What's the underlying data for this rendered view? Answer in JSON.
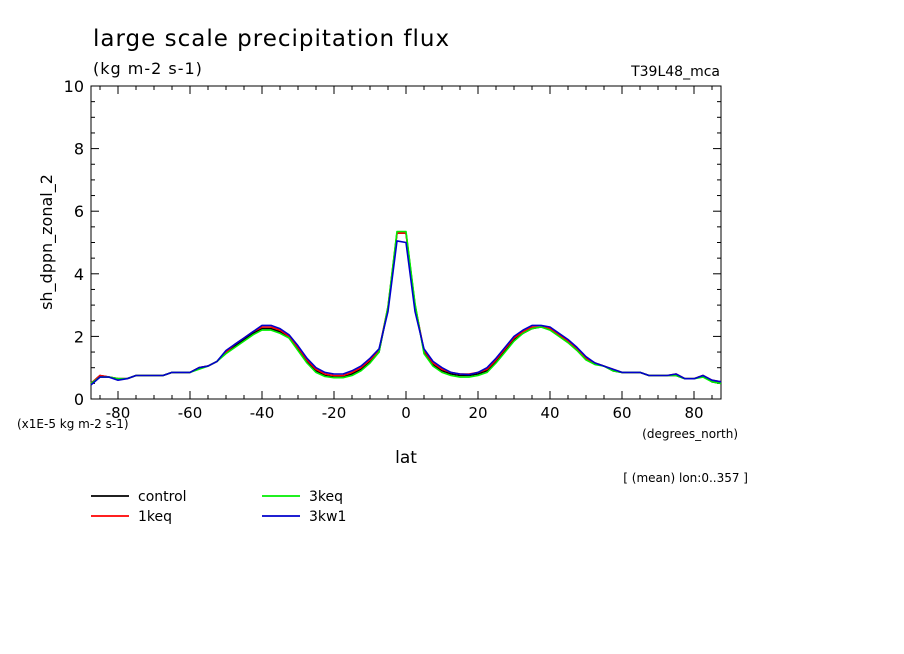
{
  "chart_data": {
    "type": "line",
    "title": "large scale precipitation flux",
    "subtitle": "(kg m-2 s-1)",
    "run_label": "T39L48_mca",
    "xlabel": "lat",
    "xunits": "(degrees_north)",
    "ylabel": "sh_dppn_zonal_2",
    "yscale_note": "(x1E-5 kg m-2 s-1)",
    "footnote": "[ (mean) lon:0..357 ]",
    "xlim": [
      -87.5,
      87.5
    ],
    "ylim": [
      0,
      10
    ],
    "xticks": [
      -80,
      -60,
      -40,
      -20,
      0,
      20,
      40,
      60,
      80
    ],
    "xtick_labels": [
      "-80",
      "-60",
      "-40",
      "-20",
      "0",
      "20",
      "40",
      "60",
      "80"
    ],
    "yticks": [
      0,
      2,
      4,
      6,
      8,
      10
    ],
    "ytick_labels": [
      "0",
      "2",
      "4",
      "6",
      "8",
      "10"
    ],
    "x": [
      -87.5,
      -85,
      -82.5,
      -80,
      -77.5,
      -75,
      -72.5,
      -70,
      -67.5,
      -65,
      -62.5,
      -60,
      -57.5,
      -55,
      -52.5,
      -50,
      -47.5,
      -45,
      -42.5,
      -40,
      -37.5,
      -35,
      -32.5,
      -30,
      -27.5,
      -25,
      -22.5,
      -20,
      -17.5,
      -15,
      -12.5,
      -10,
      -7.5,
      -5,
      -2.5,
      0,
      2.5,
      5,
      7.5,
      10,
      12.5,
      15,
      17.5,
      20,
      22.5,
      25,
      27.5,
      30,
      32.5,
      35,
      37.5,
      40,
      42.5,
      45,
      47.5,
      50,
      52.5,
      55,
      57.5,
      60,
      62.5,
      65,
      67.5,
      70,
      72.5,
      75,
      77.5,
      80,
      82.5,
      85,
      87.5
    ],
    "series": [
      {
        "name": "control",
        "color": "#000000",
        "values": [
          0.5,
          0.75,
          0.7,
          0.65,
          0.65,
          0.75,
          0.75,
          0.75,
          0.75,
          0.85,
          0.85,
          0.85,
          1.0,
          1.05,
          1.2,
          1.5,
          1.7,
          1.9,
          2.1,
          2.25,
          2.25,
          2.15,
          2.0,
          1.6,
          1.2,
          0.9,
          0.75,
          0.7,
          0.7,
          0.8,
          0.95,
          1.2,
          1.5,
          2.9,
          5.3,
          5.3,
          3.0,
          1.5,
          1.1,
          0.9,
          0.8,
          0.75,
          0.75,
          0.8,
          0.9,
          1.2,
          1.55,
          1.9,
          2.1,
          2.25,
          2.3,
          2.25,
          2.05,
          1.85,
          1.6,
          1.3,
          1.15,
          1.05,
          0.9,
          0.85,
          0.85,
          0.85,
          0.75,
          0.75,
          0.75,
          0.75,
          0.65,
          0.65,
          0.75,
          0.55,
          0.5
        ]
      },
      {
        "name": "1keq",
        "color": "#ff0000",
        "values": [
          0.5,
          0.75,
          0.7,
          0.65,
          0.65,
          0.75,
          0.75,
          0.75,
          0.75,
          0.85,
          0.85,
          0.85,
          1.0,
          1.05,
          1.2,
          1.5,
          1.75,
          1.95,
          2.15,
          2.3,
          2.3,
          2.2,
          2.0,
          1.65,
          1.25,
          0.95,
          0.8,
          0.75,
          0.75,
          0.85,
          1.0,
          1.25,
          1.55,
          2.95,
          5.3,
          5.3,
          3.0,
          1.55,
          1.15,
          0.95,
          0.85,
          0.8,
          0.8,
          0.85,
          0.95,
          1.25,
          1.6,
          1.95,
          2.15,
          2.3,
          2.3,
          2.25,
          2.05,
          1.85,
          1.6,
          1.3,
          1.15,
          1.05,
          0.95,
          0.85,
          0.85,
          0.85,
          0.75,
          0.75,
          0.75,
          0.8,
          0.65,
          0.65,
          0.75,
          0.6,
          0.55
        ]
      },
      {
        "name": "3keq",
        "color": "#00ee00",
        "values": [
          0.5,
          0.7,
          0.7,
          0.65,
          0.65,
          0.75,
          0.75,
          0.75,
          0.75,
          0.85,
          0.85,
          0.85,
          0.95,
          1.05,
          1.2,
          1.45,
          1.65,
          1.85,
          2.05,
          2.2,
          2.2,
          2.1,
          1.95,
          1.55,
          1.15,
          0.85,
          0.72,
          0.68,
          0.68,
          0.75,
          0.9,
          1.15,
          1.5,
          2.95,
          5.35,
          5.35,
          3.05,
          1.45,
          1.05,
          0.85,
          0.75,
          0.7,
          0.7,
          0.75,
          0.85,
          1.15,
          1.5,
          1.85,
          2.1,
          2.25,
          2.3,
          2.2,
          2.0,
          1.8,
          1.55,
          1.25,
          1.1,
          1.05,
          0.9,
          0.85,
          0.85,
          0.85,
          0.75,
          0.75,
          0.75,
          0.75,
          0.65,
          0.65,
          0.7,
          0.55,
          0.5
        ]
      },
      {
        "name": "3kw1",
        "color": "#0000cc",
        "values": [
          0.45,
          0.7,
          0.7,
          0.6,
          0.65,
          0.75,
          0.75,
          0.75,
          0.75,
          0.85,
          0.85,
          0.85,
          1.0,
          1.05,
          1.2,
          1.55,
          1.75,
          1.95,
          2.15,
          2.35,
          2.35,
          2.25,
          2.05,
          1.7,
          1.3,
          1.0,
          0.85,
          0.8,
          0.8,
          0.9,
          1.05,
          1.3,
          1.6,
          2.8,
          5.05,
          5.0,
          2.8,
          1.6,
          1.2,
          1.0,
          0.85,
          0.8,
          0.78,
          0.85,
          1.0,
          1.3,
          1.65,
          2.0,
          2.2,
          2.35,
          2.35,
          2.3,
          2.1,
          1.9,
          1.65,
          1.35,
          1.15,
          1.05,
          0.95,
          0.85,
          0.85,
          0.85,
          0.75,
          0.75,
          0.75,
          0.8,
          0.65,
          0.65,
          0.75,
          0.6,
          0.55
        ]
      }
    ],
    "legend_position": "bottom-left",
    "grid": false
  }
}
